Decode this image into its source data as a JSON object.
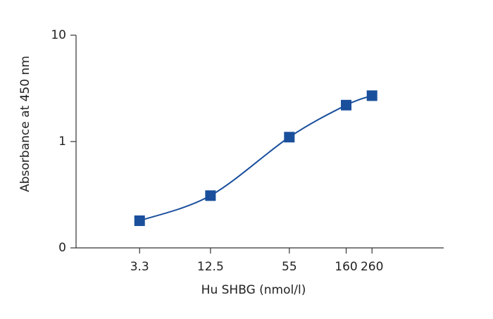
{
  "chart_data": {
    "type": "line",
    "x_label": "Hu SHBG (nmol/l)",
    "y_label": "Absorbance at 450 nm",
    "x": [
      3.3,
      12.5,
      55,
      160,
      260
    ],
    "series": [
      {
        "color": "#1a4f9c",
        "values": [
          0.18,
          0.31,
          1.1,
          2.2,
          2.7
        ]
      }
    ],
    "xlim": [
      1,
      1000
    ],
    "xticks": [
      3.3,
      12.5,
      55,
      160,
      260
    ],
    "xscale": "log",
    "ylim": [
      0.1,
      10
    ],
    "yticks": [
      {
        "value": 0.1,
        "label": "0"
      },
      1,
      10
    ],
    "yscale": "log",
    "grid": false,
    "marker": "square"
  }
}
